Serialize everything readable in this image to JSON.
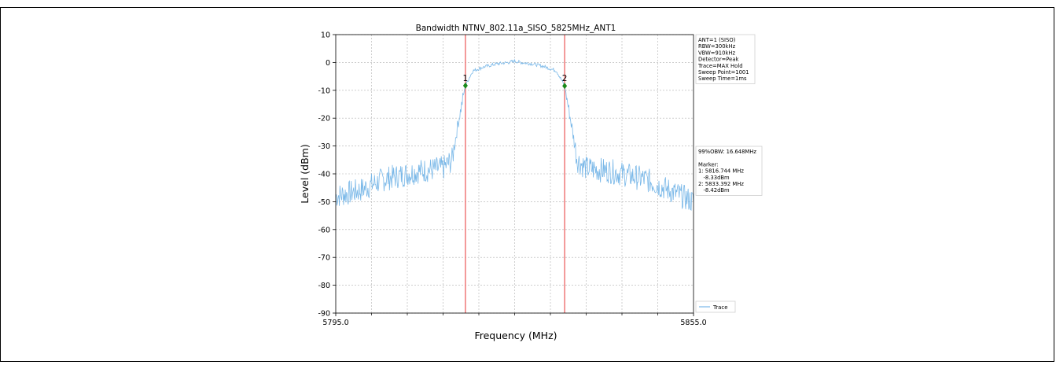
{
  "chart_data": {
    "type": "line",
    "title": "Bandwidth NTNV_802.11a_SISO_5825MHz_ANT1",
    "xlabel": "Frequency (MHz)",
    "ylabel": "Level (dBm)",
    "xlim": [
      5795.0,
      5855.0
    ],
    "ylim": [
      -90,
      10
    ],
    "x_tick_labels": [
      "5795.0",
      "5855.0"
    ],
    "y_ticks": [
      10,
      0,
      -10,
      -20,
      -30,
      -40,
      -50,
      -60,
      -70,
      -80,
      -90
    ],
    "grid": true,
    "legend_placement": "bottom-right",
    "series": [
      {
        "name": "Trace",
        "color": "#7ab8e8",
        "x": [
          5795.0,
          5797.0,
          5799.0,
          5801.0,
          5803.0,
          5805.0,
          5807.0,
          5809.0,
          5811.0,
          5813.0,
          5814.5,
          5815.5,
          5816.744,
          5818.0,
          5820.0,
          5822.0,
          5824.0,
          5825.0,
          5826.0,
          5828.0,
          5830.0,
          5832.0,
          5833.392,
          5834.5,
          5835.5,
          5837.0,
          5839.0,
          5841.0,
          5843.0,
          5845.0,
          5847.0,
          5849.0,
          5851.0,
          5853.0,
          5855.0
        ],
        "y": [
          -48,
          -47,
          -46,
          -44,
          -42,
          -41,
          -40,
          -39,
          -38.5,
          -38,
          -35,
          -22,
          -8.3,
          -3,
          -1.5,
          -0.5,
          0,
          0.5,
          0,
          -0.5,
          -1.5,
          -3,
          -8.4,
          -22,
          -35,
          -38,
          -38.5,
          -39,
          -40,
          -41,
          -42,
          -44,
          -46,
          -48,
          -50
        ]
      }
    ],
    "markers": [
      {
        "label": "1",
        "x": 5816.744,
        "y": -8.33
      },
      {
        "label": "2",
        "x": 5833.392,
        "y": -8.42
      }
    ],
    "settings_box": [
      "ANT=1 (SISO)",
      "RBW=300kHz",
      "VBW=910kHz",
      "Detector=Peak",
      "Trace=MAX Hold",
      "Sweep Point=1001",
      "Sweep Time=1ms"
    ],
    "marker_box": [
      "99%OBW: 16.648MHz",
      "",
      "Marker:",
      "1: 5816.744 MHz",
      "   -8.33dBm",
      "2: 5833.392 MHz",
      "   -8.42dBm"
    ],
    "colors": {
      "trace": "#7ab8e8",
      "marker_line": "#f08080",
      "marker_point": "#1a8a1a",
      "grid": "#b0b0b0"
    }
  }
}
